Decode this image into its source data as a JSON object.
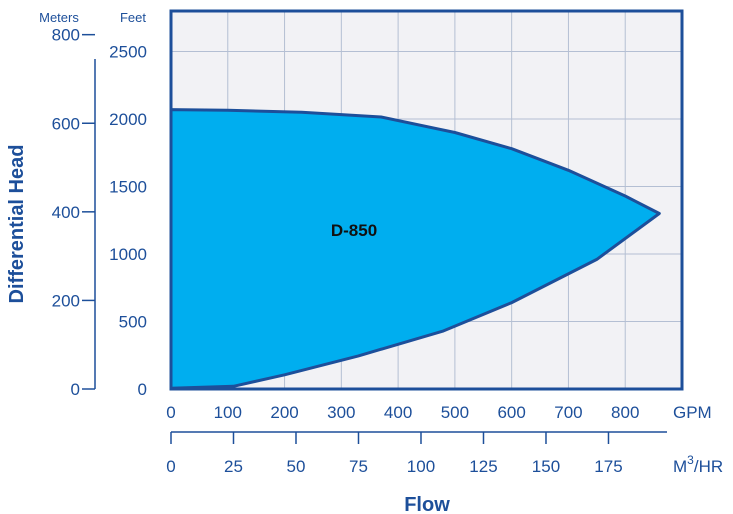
{
  "chart_data": {
    "type": "area",
    "region_label": "D-850",
    "ylabel": "Differential Head",
    "xlabel": "Flow",
    "y_axes": {
      "feet": {
        "unit": "Feet",
        "ticks": [
          0,
          500,
          1000,
          1500,
          2000,
          2500
        ],
        "range": [
          0,
          2800
        ]
      },
      "meters": {
        "unit": "Meters",
        "ticks": [
          0,
          200,
          400,
          600,
          800
        ],
        "tick_labels": [
          "0",
          "200",
          "400",
          "600",
          "800"
        ]
      }
    },
    "x_axes": {
      "gpm": {
        "unit": "GPM",
        "ticks": [
          0,
          100,
          200,
          300,
          400,
          500,
          600,
          700,
          800
        ],
        "range": [
          0,
          900
        ]
      },
      "m3hr": {
        "unit_main": "M",
        "unit_sup": "3",
        "unit_tail": "/HR",
        "ticks": [
          0,
          25,
          50,
          75,
          100,
          125,
          150,
          175
        ],
        "gpm_per_unit": 4.403
      }
    },
    "envelope_gpm_feet": [
      [
        0,
        2070
      ],
      [
        100,
        2065
      ],
      [
        230,
        2050
      ],
      [
        370,
        2015
      ],
      [
        500,
        1900
      ],
      [
        600,
        1780
      ],
      [
        700,
        1620
      ],
      [
        800,
        1430
      ],
      [
        860,
        1300
      ],
      [
        750,
        960
      ],
      [
        600,
        640
      ],
      [
        480,
        430
      ],
      [
        330,
        245
      ],
      [
        200,
        105
      ],
      [
        110,
        20
      ],
      [
        0,
        5
      ]
    ],
    "grid": true,
    "colors": {
      "fill": "#00aeef",
      "frame": "#1d4f9a",
      "grid": "#b4bfd3",
      "plot_bg": "#f2f2f5",
      "text": "#1d4f9a"
    }
  }
}
